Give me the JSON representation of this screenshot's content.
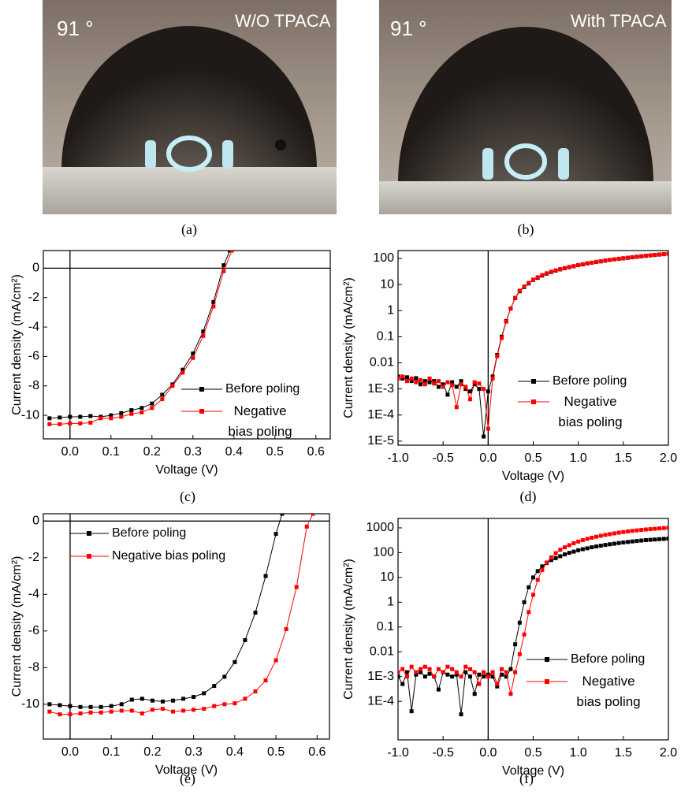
{
  "photos": [
    {
      "angle": "91 °",
      "label": "W/O TPACA",
      "caption": "(a)"
    },
    {
      "angle": "91 °",
      "label": "With TPACA",
      "caption": "(b)"
    }
  ],
  "chart_data": [
    {
      "type": "line",
      "caption": "(c)",
      "xlabel": "Voltage (V)",
      "ylabel": "Current density (mA/cm²)",
      "xlim": [
        -0.065,
        0.635
      ],
      "ylim": [
        -11.6,
        1.2
      ],
      "xticks": [
        {
          "value": 0,
          "label": "0.0"
        },
        0.1,
        0.2,
        0.3,
        0.4,
        0.5,
        0.6
      ],
      "yticks": [
        -10,
        -8,
        -6,
        -4,
        -2,
        0
      ],
      "legend": "lower right",
      "series": [
        {
          "name": "Before poling",
          "color": "#000000",
          "x": [
            -0.05,
            -0.025,
            0,
            0.025,
            0.05,
            0.075,
            0.1,
            0.125,
            0.15,
            0.175,
            0.2,
            0.225,
            0.25,
            0.275,
            0.3,
            0.325,
            0.35,
            0.375,
            0.39
          ],
          "values": [
            -10.2,
            -10.15,
            -10.1,
            -10.1,
            -10.05,
            -10.1,
            -10.0,
            -9.85,
            -9.65,
            -9.5,
            -9.2,
            -8.6,
            -7.9,
            -6.9,
            -5.8,
            -4.3,
            -2.3,
            0.2,
            1.2
          ]
        },
        {
          "name": "Negative bias poling",
          "color": "#ff0000",
          "x": [
            -0.05,
            -0.025,
            0,
            0.025,
            0.05,
            0.075,
            0.1,
            0.125,
            0.15,
            0.175,
            0.2,
            0.225,
            0.25,
            0.275,
            0.3,
            0.325,
            0.35,
            0.375,
            0.395
          ],
          "values": [
            -10.6,
            -10.6,
            -10.55,
            -10.55,
            -10.5,
            -10.2,
            -10.2,
            -10.1,
            -9.9,
            -9.8,
            -9.5,
            -8.9,
            -8.0,
            -7.1,
            -6.1,
            -4.6,
            -2.6,
            -0.2,
            1.2
          ]
        }
      ]
    },
    {
      "type": "line",
      "caption": "(d)",
      "xlabel": "Voltage (V)",
      "ylabel": "Current density (mA/cm²)",
      "yscale": "log",
      "xlim": [
        -1,
        2
      ],
      "ylim": [
        7e-06,
        200
      ],
      "xticks": [
        {
          "value": -1,
          "label": "-1.0"
        },
        -0.5,
        {
          "value": 0,
          "label": "0.0"
        },
        0.5,
        {
          "value": 1,
          "label": "1.0"
        },
        1.5,
        {
          "value": 2,
          "label": "2.0"
        }
      ],
      "yticks": [
        {
          "value": 1e-05,
          "label": "1E-5"
        },
        {
          "value": 0.0001,
          "label": "1E-4"
        },
        {
          "value": 0.001,
          "label": "1E-3"
        },
        0.01,
        0.1,
        1,
        10,
        100
      ],
      "legend": "lower right",
      "x": [
        -1,
        -0.95,
        -0.9,
        -0.85,
        -0.8,
        -0.75,
        -0.7,
        -0.65,
        -0.6,
        -0.55,
        -0.5,
        -0.45,
        -0.4,
        -0.35,
        -0.3,
        -0.25,
        -0.2,
        -0.15,
        -0.1,
        -0.05,
        0,
        0.05,
        0.1,
        0.15,
        0.2,
        0.25,
        0.3,
        0.35,
        0.4,
        0.45,
        0.5,
        0.55,
        0.6,
        0.65,
        0.7,
        0.75,
        0.8,
        0.85,
        0.9,
        0.95,
        1,
        1.05,
        1.1,
        1.15,
        1.2,
        1.25,
        1.3,
        1.35,
        1.4,
        1.45,
        1.5,
        1.55,
        1.6,
        1.65,
        1.7,
        1.75,
        1.8,
        1.85,
        1.9,
        1.95,
        2
      ],
      "series": [
        {
          "name": "Before poling",
          "color": "#000000",
          "values": [
            0.003,
            0.0025,
            0.0028,
            0.002,
            0.0026,
            0.0015,
            0.002,
            0.0018,
            0.002,
            0.0012,
            0.0015,
            0.0006,
            0.0018,
            0.0012,
            0.002,
            0.001,
            0.0008,
            0.0015,
            0.001,
            1.5e-05,
            0.0008,
            0.003,
            0.02,
            0.1,
            0.4,
            1.2,
            3,
            5.5,
            8,
            11,
            15,
            18,
            22,
            26,
            30,
            34,
            38,
            42,
            46,
            50,
            55,
            59,
            64,
            68,
            73,
            77,
            82,
            87,
            92,
            96,
            100,
            105,
            110,
            115,
            120,
            125,
            130,
            135,
            140,
            145,
            150
          ]
        },
        {
          "name": "Negative bias poling",
          "color": "#ff0000",
          "values": [
            0.0025,
            0.003,
            0.002,
            0.0025,
            0.0018,
            0.0022,
            0.0015,
            0.0025,
            0.0016,
            0.002,
            0.0012,
            0.0018,
            0.0014,
            0.0002,
            0.0015,
            0.0012,
            0.0004,
            0.0018,
            0.0016,
            0.001,
            3e-05,
            0.0025,
            0.018,
            0.09,
            0.38,
            1.2,
            3.1,
            5.8,
            8.4,
            11.5,
            15.5,
            19,
            23,
            27,
            31,
            35,
            39,
            43,
            47,
            51,
            56,
            60,
            65,
            69,
            74,
            78,
            83,
            88,
            93,
            97,
            102,
            107,
            112,
            117,
            122,
            127,
            132,
            137,
            142,
            147,
            152
          ]
        }
      ]
    },
    {
      "type": "line",
      "caption": "(e)",
      "xlabel": "Voltage (V)",
      "ylabel": "Current density (mA/cm²)",
      "xlim": [
        -0.065,
        0.63
      ],
      "ylim": [
        -11.9,
        0.4
      ],
      "xticks": [
        {
          "value": 0,
          "label": "0.0"
        },
        0.1,
        0.2,
        0.3,
        0.4,
        0.5,
        0.6
      ],
      "yticks": [
        -10,
        -8,
        -6,
        -4,
        -2,
        0
      ],
      "legend": "upper left",
      "series": [
        {
          "name": "Before poling",
          "color": "#000000",
          "x": [
            -0.05,
            -0.025,
            0,
            0.025,
            0.05,
            0.075,
            0.1,
            0.125,
            0.15,
            0.175,
            0.2,
            0.225,
            0.25,
            0.275,
            0.3,
            0.325,
            0.35,
            0.375,
            0.4,
            0.425,
            0.45,
            0.475,
            0.5,
            0.515
          ],
          "values": [
            -10.0,
            -10.05,
            -10.1,
            -10.15,
            -10.15,
            -10.15,
            -10.1,
            -10.0,
            -9.75,
            -9.7,
            -9.8,
            -9.85,
            -9.8,
            -9.7,
            -9.6,
            -9.4,
            -9.0,
            -8.5,
            -7.7,
            -6.5,
            -5.0,
            -3.0,
            -0.7,
            0.4
          ]
        },
        {
          "name": "Negative bias poling",
          "color": "#ff0000",
          "x": [
            -0.05,
            -0.025,
            0,
            0.025,
            0.05,
            0.075,
            0.1,
            0.125,
            0.15,
            0.175,
            0.2,
            0.225,
            0.25,
            0.275,
            0.3,
            0.325,
            0.35,
            0.375,
            0.4,
            0.425,
            0.45,
            0.475,
            0.5,
            0.525,
            0.55,
            0.575,
            0.59
          ],
          "values": [
            -10.4,
            -10.55,
            -10.55,
            -10.5,
            -10.45,
            -10.45,
            -10.4,
            -10.35,
            -10.35,
            -10.5,
            -10.3,
            -10.25,
            -10.4,
            -10.35,
            -10.3,
            -10.25,
            -10.1,
            -10.0,
            -9.95,
            -9.7,
            -9.3,
            -8.7,
            -7.6,
            -5.9,
            -3.6,
            -0.3,
            0.4
          ]
        }
      ]
    },
    {
      "type": "line",
      "caption": "(f)",
      "xlabel": "Voltage (V)",
      "ylabel": "Current density (mA/cm²)",
      "yscale": "log",
      "xlim": [
        -1,
        2
      ],
      "ylim": [
        2.8e-06,
        2400
      ],
      "xticks": [
        {
          "value": -1,
          "label": "-1.0"
        },
        -0.5,
        {
          "value": 0,
          "label": "0.0"
        },
        0.5,
        {
          "value": 1,
          "label": "1.0"
        },
        1.5,
        {
          "value": 2,
          "label": "2.0"
        }
      ],
      "yticks": [
        {
          "value": 0.0001,
          "label": "1E-4"
        },
        {
          "value": 0.001,
          "label": "1E-3"
        },
        0.01,
        0.1,
        1,
        10,
        100,
        1000
      ],
      "legend": "lower right",
      "x": [
        -1,
        -0.95,
        -0.9,
        -0.85,
        -0.8,
        -0.75,
        -0.7,
        -0.65,
        -0.6,
        -0.55,
        -0.5,
        -0.45,
        -0.4,
        -0.35,
        -0.3,
        -0.25,
        -0.2,
        -0.15,
        -0.1,
        -0.05,
        0,
        0.05,
        0.1,
        0.15,
        0.2,
        0.25,
        0.3,
        0.35,
        0.4,
        0.45,
        0.5,
        0.55,
        0.6,
        0.65,
        0.7,
        0.75,
        0.8,
        0.85,
        0.9,
        0.95,
        1,
        1.05,
        1.1,
        1.15,
        1.2,
        1.25,
        1.3,
        1.35,
        1.4,
        1.45,
        1.5,
        1.55,
        1.6,
        1.65,
        1.7,
        1.75,
        1.8,
        1.85,
        1.9,
        1.95,
        2
      ],
      "series": [
        {
          "name": "Before poling",
          "color": "#000000",
          "values": [
            0.001,
            0.0005,
            0.0015,
            4e-05,
            0.0012,
            0.0015,
            0.001,
            0.0013,
            0.001,
            0.0003,
            0.0015,
            0.0012,
            0.001,
            0.0012,
            3e-05,
            0.0015,
            0.001,
            0.0002,
            0.0012,
            0.001,
            0.0012,
            0.001,
            0.0004,
            0.0012,
            0.001,
            0.002,
            0.02,
            0.15,
            1,
            4,
            10,
            18,
            28,
            38,
            50,
            60,
            72,
            85,
            98,
            110,
            125,
            138,
            150,
            165,
            178,
            190,
            205,
            218,
            230,
            245,
            258,
            270,
            283,
            295,
            308,
            320,
            330,
            340,
            350,
            360,
            370
          ]
        },
        {
          "name": "Negative bias poling",
          "color": "#ff0000",
          "values": [
            0.0015,
            0.002,
            0.001,
            0.0025,
            0.0015,
            0.002,
            0.0025,
            0.002,
            0.001,
            0.002,
            0.0015,
            0.0025,
            0.002,
            0.0015,
            0.001,
            0.0025,
            0.002,
            0.0015,
            0.0005,
            0.0015,
            0.001,
            0.0015,
            0.0005,
            0.002,
            0.0015,
            0.0002,
            0.0015,
            0.008,
            0.05,
            0.4,
            2,
            8,
            20,
            40,
            65,
            95,
            130,
            165,
            200,
            240,
            280,
            320,
            360,
            400,
            440,
            480,
            520,
            560,
            600,
            640,
            680,
            720,
            755,
            790,
            825,
            860,
            890,
            920,
            950,
            980,
            1000
          ]
        }
      ]
    }
  ]
}
